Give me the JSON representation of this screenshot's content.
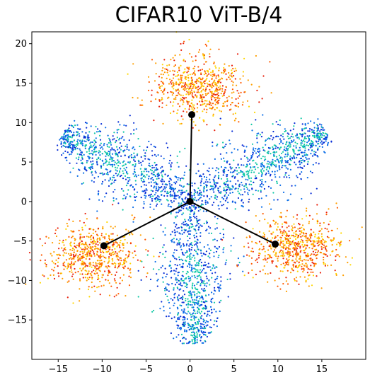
{
  "chart_data": {
    "type": "scatter",
    "title": "CIFAR10 ViT-B/4",
    "xlabel": "",
    "ylabel": "",
    "xlim": [
      -18,
      20
    ],
    "ylim": [
      -20,
      21.5
    ],
    "xticks": [
      -15,
      -10,
      -5,
      0,
      5,
      10,
      15
    ],
    "yticks": [
      -15,
      -10,
      -5,
      0,
      5,
      10,
      15,
      20
    ],
    "grid": false,
    "legend": "none",
    "colormap_colors": [
      "#0a2fd6",
      "#0b6ee8",
      "#11c9a6",
      "#ffd700",
      "#ff9f00",
      "#ff5a00",
      "#e8200c"
    ],
    "marker_color": "#000000",
    "skeleton": {
      "center": [
        0,
        0
      ],
      "endpoints": [
        [
          0.2,
          11.0
        ],
        [
          -9.8,
          -5.6
        ],
        [
          9.7,
          -5.4
        ]
      ]
    },
    "clusters": [
      {
        "part": "blue arm (upper-left)",
        "from": [
          0,
          0
        ],
        "to": [
          -14.5,
          8.5
        ],
        "color_range": "blue-green"
      },
      {
        "part": "blue arm (upper-right)",
        "from": [
          0,
          0
        ],
        "to": [
          15.5,
          8.8
        ],
        "color_range": "blue-green"
      },
      {
        "part": "blue arm (bottom)",
        "from": [
          0,
          0
        ],
        "to": [
          0.5,
          -18
        ],
        "color_range": "blue-green"
      },
      {
        "part": "warm cloud (top)",
        "center": [
          1.0,
          14.5
        ],
        "color_range": "yellow-red"
      },
      {
        "part": "warm cloud (left)",
        "center": [
          -11.0,
          -6.8
        ],
        "color_range": "yellow-red"
      },
      {
        "part": "warm cloud (right)",
        "center": [
          12.0,
          -5.8
        ],
        "color_range": "yellow-red"
      }
    ]
  }
}
